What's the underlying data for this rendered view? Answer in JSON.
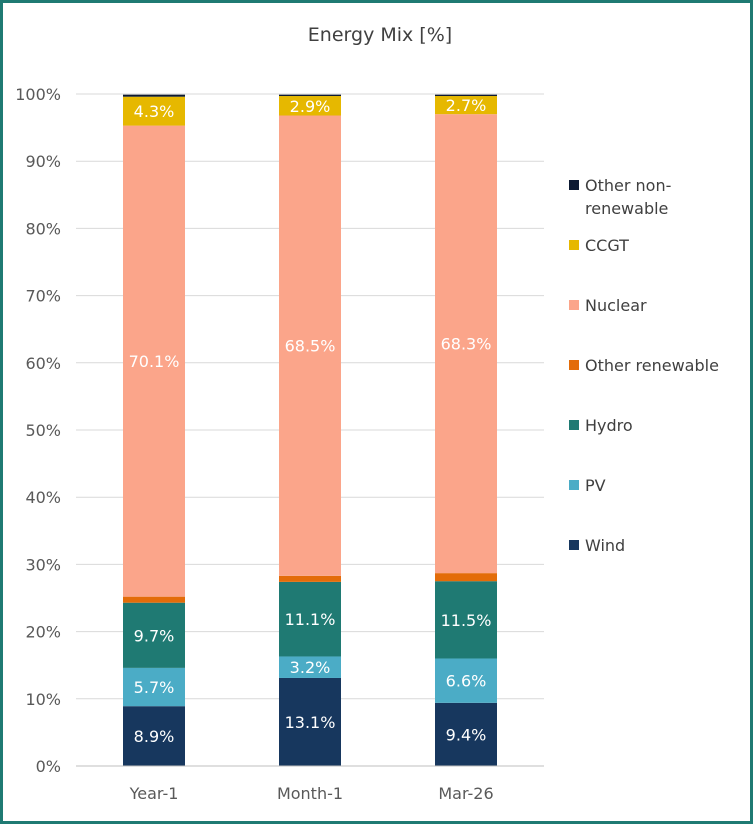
{
  "chart_data": {
    "type": "bar",
    "stacked": true,
    "title": "Energy Mix [%]",
    "xlabel": "",
    "ylabel": "",
    "ylim": [
      0,
      100
    ],
    "ytick_values": [
      0,
      10,
      20,
      30,
      40,
      50,
      60,
      70,
      80,
      90,
      100
    ],
    "ytick_labels": [
      "0%",
      "10%",
      "20%",
      "30%",
      "40%",
      "50%",
      "60%",
      "70%",
      "80%",
      "90%",
      "100%"
    ],
    "grid": true,
    "categories": [
      "Year-1",
      "Month-1",
      "Mar-26"
    ],
    "series": [
      {
        "name": "Wind",
        "color": "#17375e",
        "label_color": "#ffffff",
        "values": [
          8.9,
          13.1,
          9.4
        ],
        "labels": [
          "8.9%",
          "13.1%",
          "9.4%"
        ]
      },
      {
        "name": "PV",
        "color": "#4bacc6",
        "label_color": "#ffffff",
        "values": [
          5.7,
          3.2,
          6.6
        ],
        "labels": [
          "5.7%",
          "3.2%",
          "6.6%"
        ]
      },
      {
        "name": "Hydro",
        "color": "#1f7a73",
        "label_color": "#ffffff",
        "values": [
          9.7,
          11.1,
          11.5
        ],
        "labels": [
          "9.7%",
          "11.1%",
          "11.5%"
        ]
      },
      {
        "name": "Other renewable",
        "color": "#e36c09",
        "label_color": "#ffffff",
        "values": [
          0.9,
          0.9,
          1.2
        ],
        "labels": [
          "",
          "",
          ""
        ]
      },
      {
        "name": "Nuclear",
        "color": "#fba58a",
        "label_color": "#ffffff",
        "values": [
          70.1,
          68.5,
          68.3
        ],
        "labels": [
          "70.1%",
          "68.5%",
          "68.3%"
        ]
      },
      {
        "name": "CCGT",
        "color": "#e6b800",
        "label_color": "#ffffff",
        "values": [
          4.3,
          2.9,
          2.7
        ],
        "labels": [
          "4.3%",
          "2.9%",
          "2.7%"
        ]
      },
      {
        "name": "Other non-renewable",
        "name_lines": [
          "Other non-",
          "renewable"
        ],
        "color": "#0d1a33",
        "label_color": "#ffffff",
        "values": [
          0.3,
          0.2,
          0.2
        ],
        "labels": [
          "",
          "",
          ""
        ]
      }
    ],
    "legend_position": "right",
    "legend_order": [
      "Other non-renewable",
      "CCGT",
      "Nuclear",
      "Other renewable",
      "Hydro",
      "PV",
      "Wind"
    ]
  }
}
